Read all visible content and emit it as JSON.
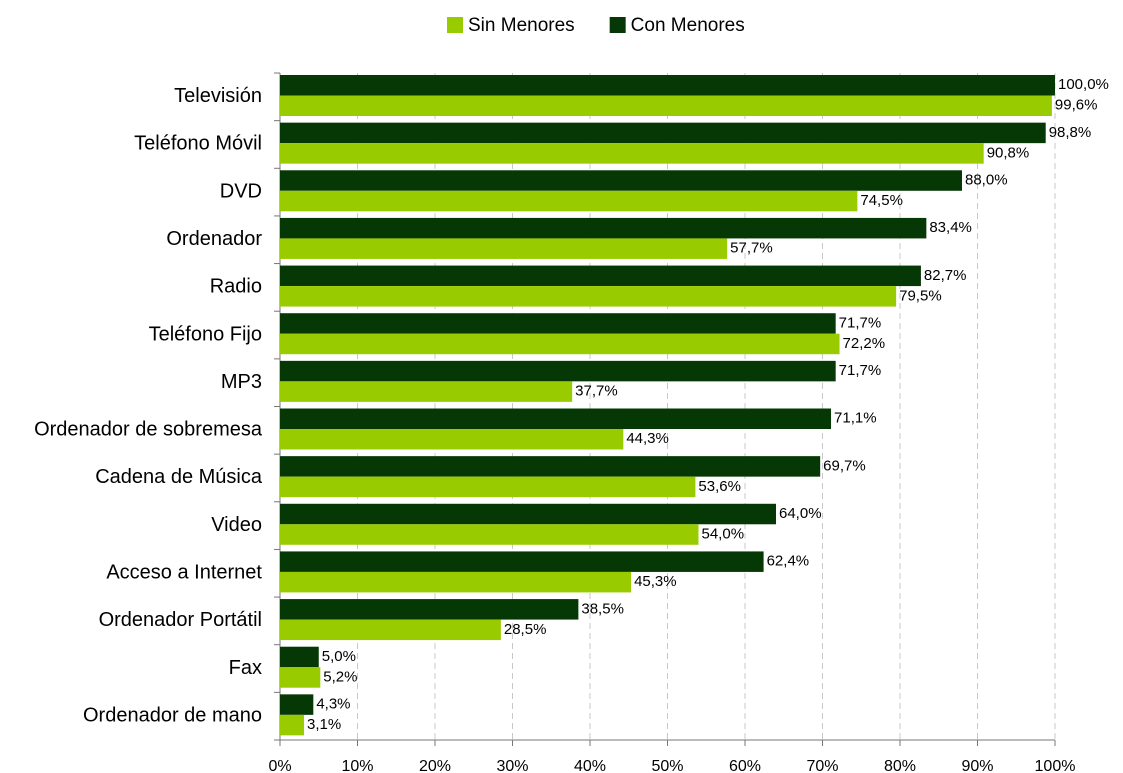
{
  "chart_data": {
    "type": "barh",
    "categories": [
      "Televisión",
      "Teléfono Móvil",
      "DVD",
      "Ordenador",
      "Radio",
      "Teléfono Fijo",
      "MP3",
      "Ordenador de sobremesa",
      "Cadena de Música",
      "Video",
      "Acceso a Internet",
      "Ordenador Portátil",
      "Fax",
      "Ordenador de mano"
    ],
    "series": [
      {
        "name": "Sin Menores",
        "color": "#99cc00",
        "values": [
          99.6,
          90.8,
          74.5,
          57.7,
          79.5,
          72.2,
          37.7,
          44.3,
          53.6,
          54.0,
          45.3,
          28.5,
          5.2,
          3.1
        ],
        "value_labels": [
          "99,6%",
          "90,8%",
          "74,5%",
          "57,7%",
          "79,5%",
          "72,2%",
          "37,7%",
          "44,3%",
          "53,6%",
          "54,0%",
          "45,3%",
          "28,5%",
          "5,2%",
          "3,1%"
        ]
      },
      {
        "name": "Con Menores",
        "color": "#063806",
        "values": [
          100.0,
          98.8,
          88.0,
          83.4,
          82.7,
          71.7,
          71.7,
          71.1,
          69.7,
          64.0,
          62.4,
          38.5,
          5.0,
          4.3
        ],
        "value_labels": [
          "100,0%",
          "98,8%",
          "88,0%",
          "83,4%",
          "82,7%",
          "71,7%",
          "71,7%",
          "71,1%",
          "69,7%",
          "64,0%",
          "62,4%",
          "38,5%",
          "5,0%",
          "4,3%"
        ]
      }
    ],
    "xlim": [
      0,
      100
    ],
    "xticks": [
      {
        "value": 0,
        "label": "0%"
      },
      {
        "value": 10,
        "label": "10%"
      },
      {
        "value": 20,
        "label": "20%"
      },
      {
        "value": 30,
        "label": "30%"
      },
      {
        "value": 40,
        "label": "40%"
      },
      {
        "value": 50,
        "label": "50%"
      },
      {
        "value": 60,
        "label": "60%"
      },
      {
        "value": 70,
        "label": "70%"
      },
      {
        "value": 80,
        "label": "80%"
      },
      {
        "value": 90,
        "label": "90%"
      },
      {
        "value": 100,
        "label": "100%"
      }
    ],
    "grid": true,
    "legend": "top"
  }
}
